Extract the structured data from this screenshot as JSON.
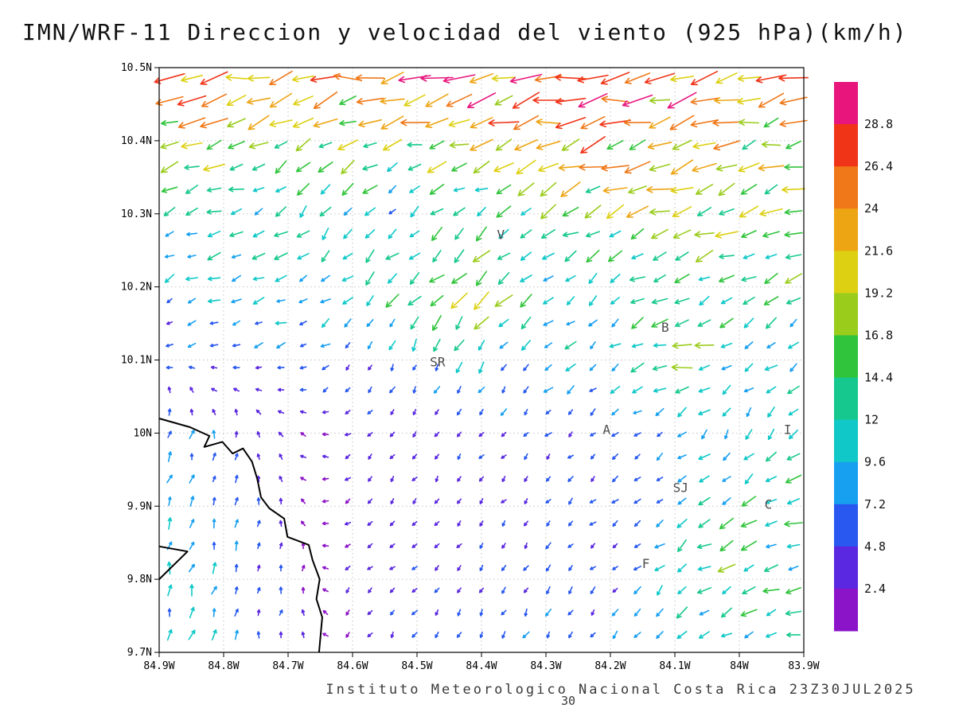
{
  "chart_data": {
    "type": "vector-field-map",
    "title": "IMN/WRF-11 Direccion y velocidad del viento (925 hPa)(km/h)",
    "footer": "Instituto Meteorologico Nacional Costa Rica 23Z30JUL2025",
    "frame_number": "30",
    "units": "km/h",
    "x_axis": {
      "range": [
        -84.9,
        -83.9
      ],
      "ticks": [
        {
          "v": -84.9,
          "label": "84.9W"
        },
        {
          "v": -84.8,
          "label": "84.8W"
        },
        {
          "v": -84.7,
          "label": "84.7W"
        },
        {
          "v": -84.6,
          "label": "84.6W"
        },
        {
          "v": -84.5,
          "label": "84.5W"
        },
        {
          "v": -84.4,
          "label": "84.4W"
        },
        {
          "v": -84.3,
          "label": "84.3W"
        },
        {
          "v": -84.2,
          "label": "84.2W"
        },
        {
          "v": -84.1,
          "label": "84.1W"
        },
        {
          "v": -84.0,
          "label": "84W"
        },
        {
          "v": -83.9,
          "label": "83.9W"
        }
      ]
    },
    "y_axis": {
      "range": [
        9.7,
        10.5
      ],
      "ticks": [
        {
          "v": 9.7,
          "label": "9.7N"
        },
        {
          "v": 9.8,
          "label": "9.8N"
        },
        {
          "v": 9.9,
          "label": "9.9N"
        },
        {
          "v": 10.0,
          "label": "10N"
        },
        {
          "v": 10.1,
          "label": "10.1N"
        },
        {
          "v": 10.2,
          "label": "10.2N"
        },
        {
          "v": 10.3,
          "label": "10.3N"
        },
        {
          "v": 10.4,
          "label": "10.4N"
        },
        {
          "v": 10.5,
          "label": "10.5N"
        }
      ]
    },
    "colorbar": {
      "levels": [
        2.4,
        4.8,
        7.2,
        9.6,
        12,
        14.4,
        16.8,
        19.2,
        21.6,
        24,
        26.4,
        28.8
      ],
      "labels": [
        "2.4",
        "4.8",
        "7.2",
        "9.6",
        "12",
        "14.4",
        "16.8",
        "19.2",
        "21.6",
        "24",
        "26.4",
        "28.8"
      ],
      "colors": [
        "#8c14c8",
        "#5a28e0",
        "#2858f0",
        "#18a0f0",
        "#10c8c8",
        "#16c88e",
        "#30c43c",
        "#9acc1c",
        "#ddd012",
        "#eda514",
        "#f07818",
        "#f03418",
        "#e8157d"
      ]
    },
    "cities": [
      {
        "label": "V",
        "lon": -84.37,
        "lat": 10.271
      },
      {
        "label": "B",
        "lon": -84.115,
        "lat": 10.144
      },
      {
        "label": "SR",
        "lon": -84.468,
        "lat": 10.097
      },
      {
        "label": "A",
        "lon": -84.206,
        "lat": 10.004
      },
      {
        "label": "I",
        "lon": -83.925,
        "lat": 10.004
      },
      {
        "label": "SJ",
        "lon": -84.091,
        "lat": 9.925
      },
      {
        "label": "C",
        "lon": -83.955,
        "lat": 9.902
      },
      {
        "label": "F",
        "lon": -84.145,
        "lat": 9.821
      }
    ],
    "coastline": [
      [
        [
          -84.9,
          10.02
        ],
        [
          -84.852,
          10.008
        ],
        [
          -84.822,
          9.996
        ],
        [
          -84.83,
          9.981
        ],
        [
          -84.802,
          9.988
        ],
        [
          -84.786,
          9.972
        ],
        [
          -84.77,
          9.979
        ],
        [
          -84.756,
          9.961
        ],
        [
          -84.748,
          9.938
        ],
        [
          -84.742,
          9.912
        ],
        [
          -84.729,
          9.897
        ],
        [
          -84.706,
          9.883
        ],
        [
          -84.701,
          9.858
        ],
        [
          -84.668,
          9.847
        ],
        [
          -84.662,
          9.826
        ],
        [
          -84.651,
          9.8
        ],
        [
          -84.656,
          9.773
        ],
        [
          -84.647,
          9.748
        ],
        [
          -84.652,
          9.7
        ]
      ],
      [
        [
          -84.9,
          9.845
        ],
        [
          -84.856,
          9.838
        ],
        [
          -84.9,
          9.8
        ]
      ]
    ],
    "wind_grid": {
      "lon0": -84.9,
      "dlon": 0.1,
      "lat0": 10.5,
      "dlat": -0.1,
      "u": [
        [
          -24,
          -26,
          -23,
          -27,
          -29,
          -26,
          -27,
          -25,
          -26,
          -24,
          -23
        ],
        [
          -17,
          -20,
          -15,
          -13,
          -17,
          -21,
          -22,
          -21,
          -20,
          -19,
          -18
        ],
        [
          -9,
          -12,
          -7,
          -6,
          -7,
          -9,
          -13,
          -16,
          -18,
          -17,
          -15
        ],
        [
          -7,
          -10,
          -11,
          -7,
          -13,
          -14,
          -8,
          -9,
          -12,
          -10,
          -12
        ],
        [
          -5,
          -5,
          -6,
          -4,
          -3,
          -5,
          -6,
          -8,
          -17,
          -9,
          -8
        ],
        [
          2,
          1,
          -2,
          -3,
          -2,
          -3,
          -4,
          -5,
          -6,
          -5,
          -6
        ],
        [
          3,
          2,
          -1,
          -2,
          -2,
          -3,
          -3,
          -4,
          -8,
          -11,
          -14
        ],
        [
          2,
          3,
          1,
          -2,
          -3,
          -2,
          -3,
          -4,
          -9,
          -13,
          -11
        ],
        [
          3,
          2,
          0,
          -2,
          -3,
          -4,
          -3,
          -5,
          -8,
          -10,
          -11
        ]
      ],
      "v": [
        [
          -6,
          -3,
          -5,
          -2,
          -4,
          -6,
          -3,
          -5,
          -3,
          -4,
          -4
        ],
        [
          -9,
          -5,
          -8,
          -10,
          -5,
          -7,
          -6,
          -5,
          -6,
          -5,
          -6
        ],
        [
          -5,
          -4,
          -7,
          -8,
          -6,
          -7,
          -8,
          -6,
          -5,
          -6,
          -5
        ],
        [
          -3,
          -4,
          -3,
          -6,
          -13,
          -12,
          -8,
          -6,
          -5,
          -6,
          -6
        ],
        [
          1,
          -2,
          -3,
          -4,
          -7,
          -9,
          -6,
          -6,
          -4,
          -4,
          -6
        ],
        [
          8,
          6,
          2,
          -2,
          -3,
          -4,
          -4,
          -3,
          -5,
          -8,
          -9
        ],
        [
          8,
          7,
          3,
          -2,
          -3,
          -3,
          -4,
          -3,
          -4,
          -6,
          -4
        ],
        [
          9,
          8,
          4,
          -2,
          -3,
          -4,
          -5,
          -4,
          -9,
          -5,
          -3
        ],
        [
          8,
          8,
          5,
          -3,
          -5,
          -6,
          -6,
          -5,
          -6,
          -4,
          -4
        ]
      ]
    }
  }
}
